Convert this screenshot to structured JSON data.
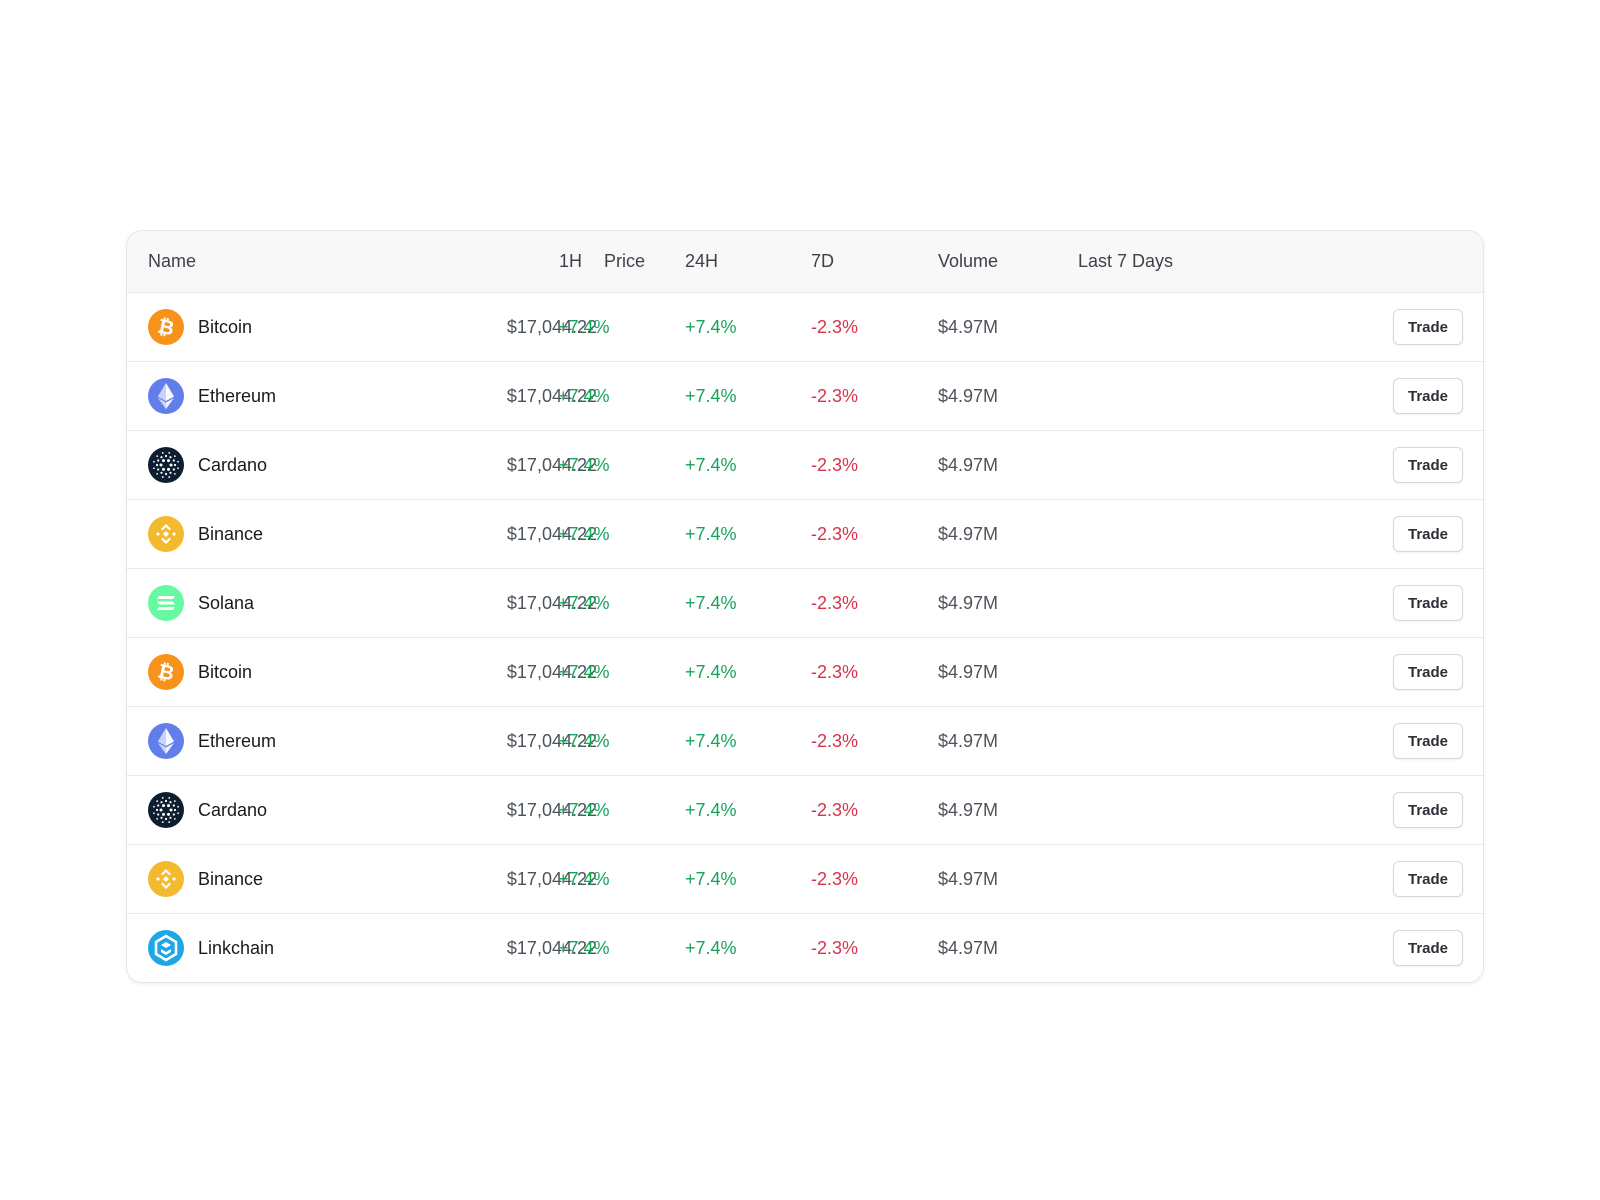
{
  "table": {
    "headers": {
      "name": "Name",
      "price": "Price",
      "h1": "1H",
      "h24": "24H",
      "d7": "7D",
      "volume": "Volume",
      "last7": "Last 7 Days"
    },
    "rows": [
      {
        "icon": "bitcoin-icon",
        "name": "Bitcoin",
        "price": "$17,044.22",
        "h1": "+7.4%",
        "h24": "+7.4%",
        "d7": "-2.3%",
        "volume": "$4.97M",
        "trade": "Trade"
      },
      {
        "icon": "ethereum-icon",
        "name": "Ethereum",
        "price": "$17,044.22",
        "h1": "+7.4%",
        "h24": "+7.4%",
        "d7": "-2.3%",
        "volume": "$4.97M",
        "trade": "Trade"
      },
      {
        "icon": "cardano-icon",
        "name": "Cardano",
        "price": "$17,044.22",
        "h1": "+7.4%",
        "h24": "+7.4%",
        "d7": "-2.3%",
        "volume": "$4.97M",
        "trade": "Trade"
      },
      {
        "icon": "binance-icon",
        "name": "Binance",
        "price": "$17,044.22",
        "h1": "+7.4%",
        "h24": "+7.4%",
        "d7": "-2.3%",
        "volume": "$4.97M",
        "trade": "Trade"
      },
      {
        "icon": "solana-icon",
        "name": "Solana",
        "price": "$17,044.22",
        "h1": "+7.4%",
        "h24": "+7.4%",
        "d7": "-2.3%",
        "volume": "$4.97M",
        "trade": "Trade"
      },
      {
        "icon": "bitcoin-icon",
        "name": "Bitcoin",
        "price": "$17,044.22",
        "h1": "+7.4%",
        "h24": "+7.4%",
        "d7": "-2.3%",
        "volume": "$4.97M",
        "trade": "Trade"
      },
      {
        "icon": "ethereum-icon",
        "name": "Ethereum",
        "price": "$17,044.22",
        "h1": "+7.4%",
        "h24": "+7.4%",
        "d7": "-2.3%",
        "volume": "$4.97M",
        "trade": "Trade"
      },
      {
        "icon": "cardano-icon",
        "name": "Cardano",
        "price": "$17,044.22",
        "h1": "+7.4%",
        "h24": "+7.4%",
        "d7": "-2.3%",
        "volume": "$4.97M",
        "trade": "Trade"
      },
      {
        "icon": "binance-icon",
        "name": "Binance",
        "price": "$17,044.22",
        "h1": "+7.4%",
        "h24": "+7.4%",
        "d7": "-2.3%",
        "volume": "$4.97M",
        "trade": "Trade"
      },
      {
        "icon": "linkchain-icon",
        "name": "Linkchain",
        "price": "$17,044.22",
        "h1": "+7.4%",
        "h24": "+7.4%",
        "d7": "-2.3%",
        "volume": "$4.97M",
        "trade": "Trade"
      }
    ]
  },
  "colors": {
    "positive": "#15a35a",
    "negative": "#d6334a",
    "bitcoin": "#f7931a",
    "ethereum": "#627eea",
    "cardano": "#0d1e30",
    "binance": "#f3ba2f",
    "solana": "#66f9a1",
    "linkchain": "#1ea7e6"
  }
}
